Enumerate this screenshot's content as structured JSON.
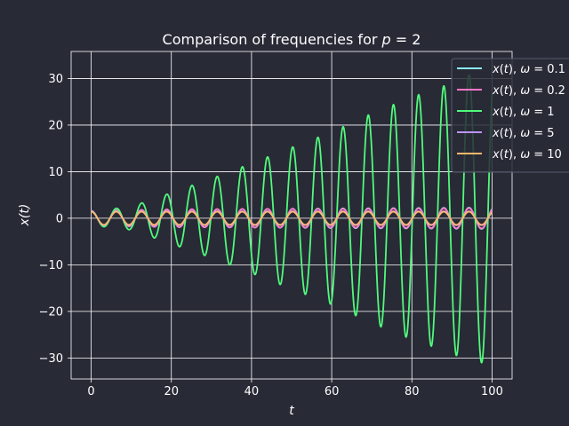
{
  "chart_data": {
    "type": "line",
    "title": "Comparison of frequencies for p = 2",
    "title_parts": {
      "prefix": "Comparison of frequencies for ",
      "var": "p",
      "rest": " = 2"
    },
    "xlabel": "t",
    "ylabel": "x(t)",
    "xlim": [
      -5,
      105
    ],
    "ylim": [
      -34.5,
      35.8
    ],
    "xticks": [
      0,
      20,
      40,
      60,
      80,
      100
    ],
    "yticks": [
      -30,
      -20,
      -10,
      0,
      10,
      20,
      30
    ],
    "ytick_labels": [
      "−30",
      "−20",
      "−10",
      "0",
      "10",
      "20",
      "30"
    ],
    "grid": true,
    "legend_position": "upper-right",
    "background": "#282a36",
    "t_range": [
      0,
      100
    ],
    "series": [
      {
        "name": "x(t), ω = 0.1",
        "omega_label": "0.1",
        "color": "#8be9fd",
        "envelope": [
          [
            0,
            1.6
          ],
          [
            20,
            1.9
          ],
          [
            40,
            2.0
          ],
          [
            60,
            2.1
          ],
          [
            80,
            2.2
          ],
          [
            100,
            2.3
          ]
        ]
      },
      {
        "name": "x(t), ω = 0.2",
        "omega_label": "0.2",
        "color": "#ff79c6",
        "envelope": [
          [
            0,
            1.6
          ],
          [
            20,
            1.9
          ],
          [
            40,
            2.0
          ],
          [
            60,
            2.0
          ],
          [
            80,
            2.1
          ],
          [
            100,
            2.2
          ]
        ]
      },
      {
        "name": "x(t), ω = 1",
        "omega_label": "1",
        "color": "#50fa7b",
        "envelope": [
          [
            0,
            1.5
          ],
          [
            10,
            2.5
          ],
          [
            20,
            5.5
          ],
          [
            30,
            8.5
          ],
          [
            40,
            11.8
          ],
          [
            50,
            15.2
          ],
          [
            60,
            18.5
          ],
          [
            70,
            22.5
          ],
          [
            80,
            26.0
          ],
          [
            90,
            29.0
          ],
          [
            95,
            31.0
          ],
          [
            100,
            31.0
          ]
        ]
      },
      {
        "name": "x(t), ω = 5",
        "omega_label": "5",
        "color": "#bd93f9",
        "envelope": [
          [
            0,
            1.5
          ],
          [
            50,
            1.5
          ],
          [
            100,
            1.5
          ]
        ]
      },
      {
        "name": "x(t), ω = 10",
        "omega_label": "10",
        "color": "#ffb86c",
        "envelope": [
          [
            0,
            1.4
          ],
          [
            50,
            1.4
          ],
          [
            100,
            1.4
          ]
        ]
      }
    ]
  }
}
